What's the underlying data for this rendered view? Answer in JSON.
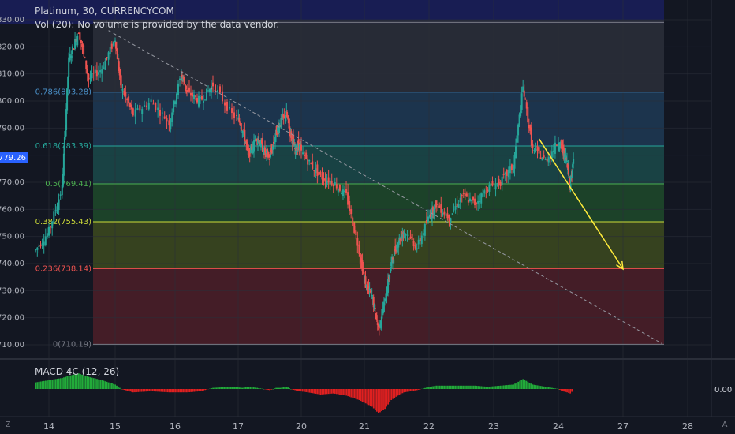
{
  "header": {
    "symbol_line": "Platinum, 30, CURRENCYCOM",
    "volume_note": "Vol (20): No volume is provided by the data vendor."
  },
  "macd": {
    "label": "MACD 4C (12, 26)",
    "zero_label": "0.00"
  },
  "price_axis": {
    "ticks": [
      "830.00",
      "820.00",
      "810.00",
      "800.00",
      "790.00",
      "780.00",
      "770.00",
      "760.00",
      "750.00",
      "740.00",
      "730.00",
      "720.00",
      "710.00"
    ],
    "current_price": "779.26"
  },
  "time_axis": {
    "ticks": [
      "14",
      "15",
      "16",
      "17",
      "20",
      "21",
      "22",
      "23",
      "24",
      "27",
      "28"
    ]
  },
  "fib_levels": [
    {
      "label": "0.786(803.28)",
      "price": 803.28,
      "color": "#4a90c8"
    },
    {
      "label": "0.618(783.39)",
      "price": 783.39,
      "color": "#26a69a"
    },
    {
      "label": "0.5(769.41)",
      "price": 769.41,
      "color": "#4caf50"
    },
    {
      "label": "0.382(755.43)",
      "price": 755.43,
      "color": "#cddc39"
    },
    {
      "label": "0.236(738.14)",
      "price": 738.14,
      "color": "#ef5350"
    },
    {
      "label": "0(710.19)",
      "price": 710.19,
      "color": "#787b86"
    }
  ],
  "corner": {
    "left": "Z",
    "right": "A"
  },
  "colors": {
    "up": "#26a69a",
    "down": "#ef5350",
    "arrow": "#ffeb3b",
    "price_badge": "#2962ff"
  },
  "chart_data": {
    "type": "line",
    "title": "Platinum, 30, CURRENCYCOM",
    "xlabel": "",
    "ylabel": "",
    "ylim": [
      705,
      833
    ],
    "x": [
      13.8,
      14.0,
      14.2,
      14.3,
      14.45,
      14.6,
      14.8,
      15.0,
      15.1,
      15.3,
      15.6,
      15.9,
      16.1,
      16.2,
      16.4,
      16.6,
      16.9,
      17.2,
      17.5,
      17.9,
      18.2,
      18.5,
      18.8,
      19.0,
      19.3,
      19.5,
      19.7,
      19.9,
      20.1,
      20.3,
      20.5,
      20.7,
      20.9,
      21.0,
      21.1,
      21.2,
      21.3,
      21.4,
      21.5,
      21.6,
      21.8,
      22.0,
      22.1,
      22.3,
      22.5,
      22.7,
      22.9,
      23.1,
      23.3,
      23.45,
      23.6,
      23.8,
      24.0,
      24.2,
      24.4,
      24.55,
      24.7
    ],
    "series": [
      {
        "values": [
          745,
          752,
          768,
          815,
          826,
          808,
          812,
          823,
          805,
          795,
          800,
          792,
          810,
          803,
          800,
          806,
          795,
          790,
          780,
          787,
          782,
          779,
          788,
          792,
          795,
          788,
          782,
          784,
          778,
          772,
          770,
          765,
          745,
          732,
          728,
          716,
          726,
          740,
          748,
          752,
          746,
          758,
          762,
          757,
          765,
          762,
          768,
          770,
          776,
          805,
          782,
          778,
          785,
          782,
          778,
          769,
          778
        ]
      }
    ],
    "macd_values": [
      0.6,
      0.8,
      1.0,
      1.2,
      1.4,
      1.1,
      0.8,
      0.4,
      0.0,
      -0.3,
      -0.2,
      -0.3,
      -0.3,
      -0.3,
      -0.2,
      0.1,
      0.2,
      0.1,
      0.2,
      0.1,
      0.0,
      -0.1,
      0.1,
      0.1,
      0.2,
      0.0,
      -0.1,
      -0.2,
      -0.3,
      -0.5,
      -0.4,
      -0.6,
      -1.0,
      -1.3,
      -1.6,
      -2.2,
      -1.8,
      -1.0,
      -0.6,
      -0.3,
      -0.1,
      0.2,
      0.3,
      0.3,
      0.3,
      0.3,
      0.2,
      0.3,
      0.4,
      0.9,
      0.4,
      0.2,
      0.0,
      -0.2,
      -0.3,
      -0.4,
      -0.1
    ],
    "trend_line": {
      "from": [
        14.9,
        826
      ],
      "to": [
        27.6,
        710.5
      ]
    },
    "projection_arrow": {
      "from": [
        23.7,
        786
      ],
      "to": [
        27.0,
        738
      ]
    },
    "legend": "none",
    "grid": true
  }
}
